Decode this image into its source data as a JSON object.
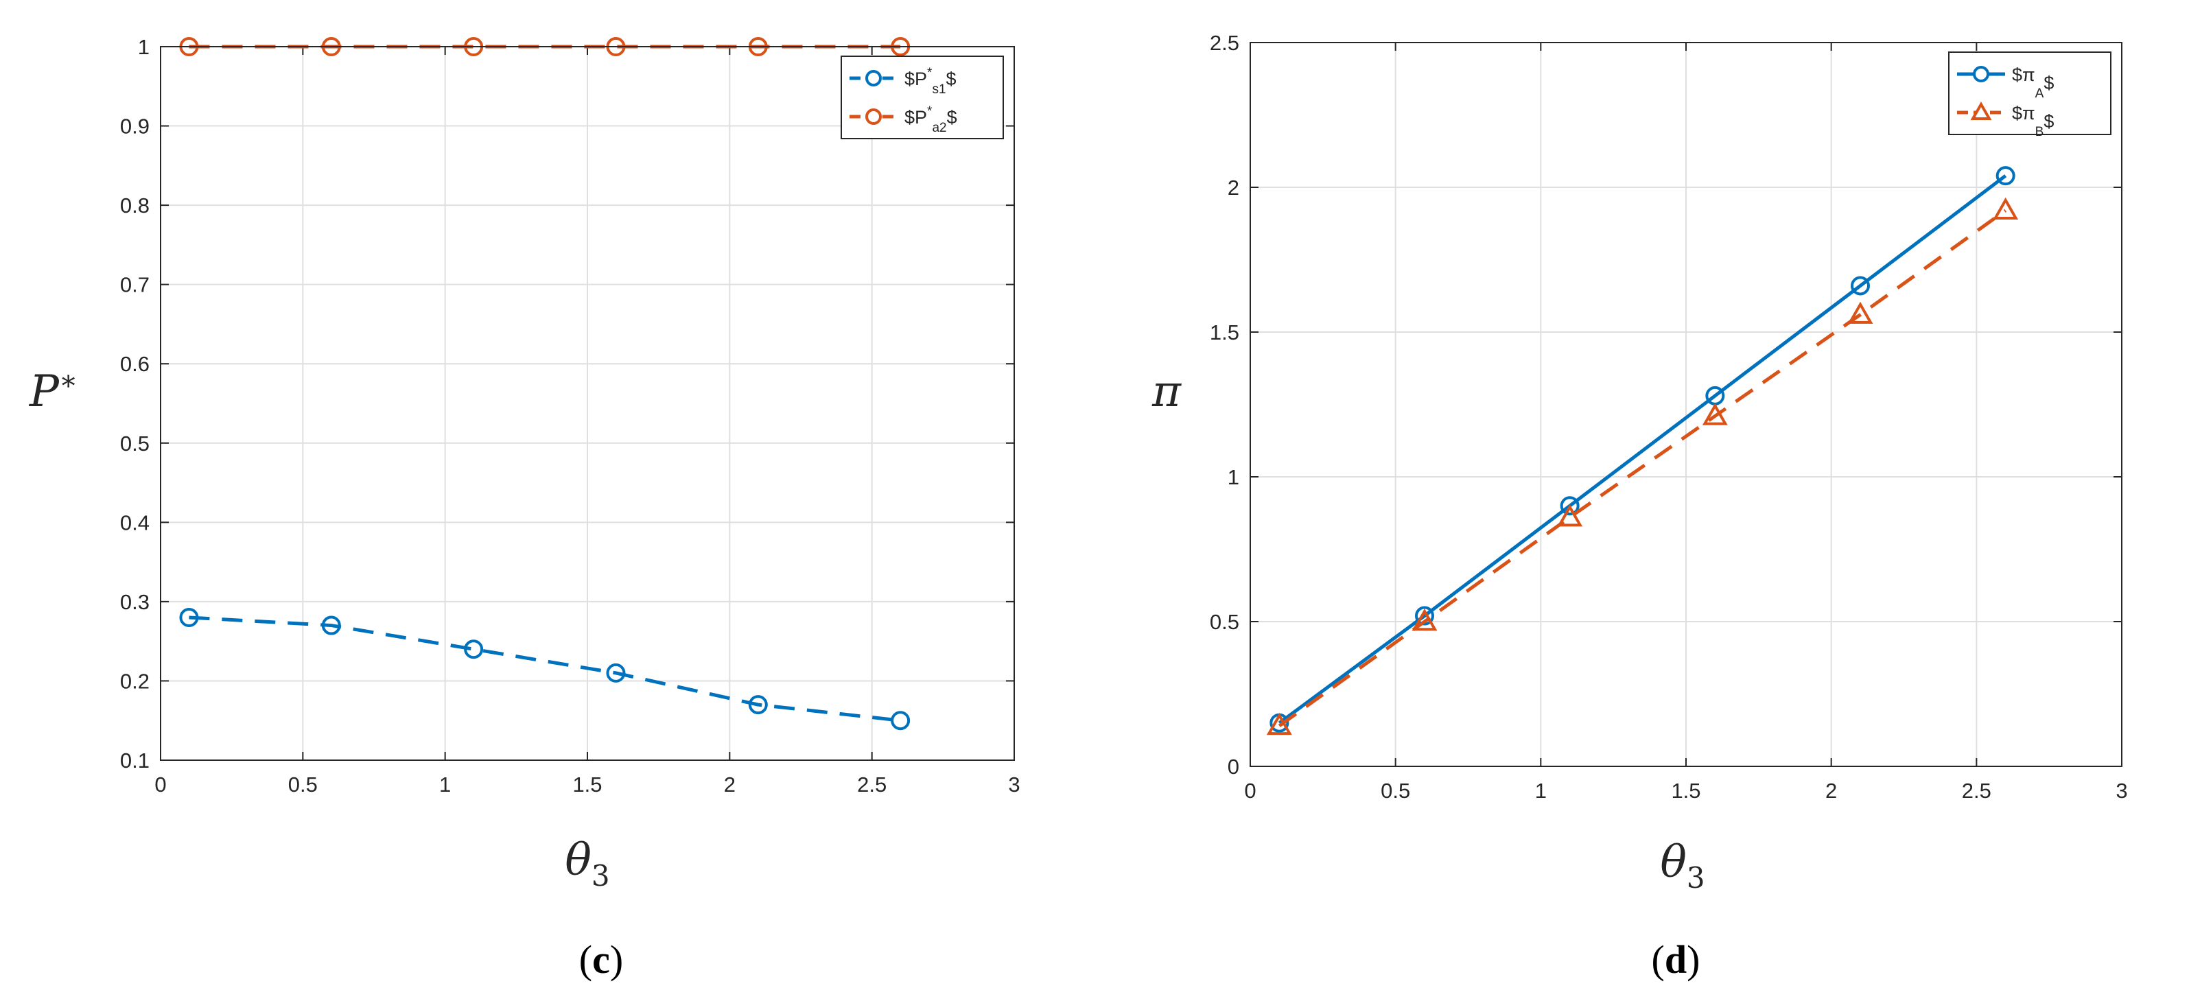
{
  "chart_data": [
    {
      "type": "line",
      "caption_open": "(",
      "caption_letter": "c",
      "caption_close": ")",
      "xlabel_base": "θ",
      "xlabel_sub": "3",
      "ylabel_base": "P",
      "ylabel_sup": "∗",
      "xlim": [
        0,
        3
      ],
      "ylim": [
        0.1,
        1
      ],
      "xticks": [
        0,
        0.5,
        1,
        1.5,
        2,
        2.5,
        3
      ],
      "xtick_labels": [
        "0",
        "0.5",
        "1",
        "1.5",
        "2",
        "2.5",
        "3"
      ],
      "yticks": [
        0.1,
        0.2,
        0.3,
        0.4,
        0.5,
        0.6,
        0.7,
        0.8,
        0.9,
        1
      ],
      "ytick_labels": [
        "0.1",
        "0.2",
        "0.3",
        "0.4",
        "0.5",
        "0.6",
        "0.7",
        "0.8",
        "0.9",
        "1"
      ],
      "grid": true,
      "legend_position": "top-right",
      "x": [
        0.1,
        0.6,
        1.1,
        1.6,
        2.1,
        2.6
      ],
      "series": [
        {
          "name": "$P^*_{s1}$",
          "legend_parts": [
            "$P",
            "*",
            "s1",
            "$"
          ],
          "values": [
            0.28,
            0.27,
            0.24,
            0.21,
            0.17,
            0.15
          ],
          "color": "#0072BD",
          "line_style": "dashed",
          "marker": "circle"
        },
        {
          "name": "$P^*_{a2}$",
          "legend_parts": [
            "$P",
            "*",
            "a2",
            "$"
          ],
          "values": [
            1,
            1,
            1,
            1,
            1,
            1
          ],
          "color": "#D95319",
          "line_style": "dashed",
          "marker": "circle"
        }
      ]
    },
    {
      "type": "line",
      "caption_open": "(",
      "caption_letter": "d",
      "caption_close": ")",
      "xlabel_base": "θ",
      "xlabel_sub": "3",
      "ylabel_base": "π",
      "xlim": [
        0,
        3
      ],
      "ylim": [
        0,
        2.5
      ],
      "xticks": [
        0,
        0.5,
        1,
        1.5,
        2,
        2.5,
        3
      ],
      "xtick_labels": [
        "0",
        "0.5",
        "1",
        "1.5",
        "2",
        "2.5",
        "3"
      ],
      "yticks": [
        0,
        0.5,
        1,
        1.5,
        2,
        2.5
      ],
      "ytick_labels": [
        "0",
        "0.5",
        "1",
        "1.5",
        "2",
        "2.5"
      ],
      "grid": true,
      "legend_position": "top-right",
      "x": [
        0.1,
        0.6,
        1.1,
        1.6,
        2.1,
        2.6
      ],
      "series": [
        {
          "name": "$\\pi_A$",
          "legend_parts": [
            "$π",
            "",
            "A",
            "$"
          ],
          "values": [
            0.15,
            0.52,
            0.9,
            1.28,
            1.66,
            2.04
          ],
          "color": "#0072BD",
          "line_style": "solid",
          "marker": "circle"
        },
        {
          "name": "$\\pi_B$",
          "legend_parts": [
            "$π",
            "",
            "B",
            "$"
          ],
          "values": [
            0.14,
            0.5,
            0.86,
            1.21,
            1.56,
            1.92
          ],
          "color": "#D95319",
          "line_style": "dashed",
          "marker": "triangle"
        }
      ]
    }
  ]
}
